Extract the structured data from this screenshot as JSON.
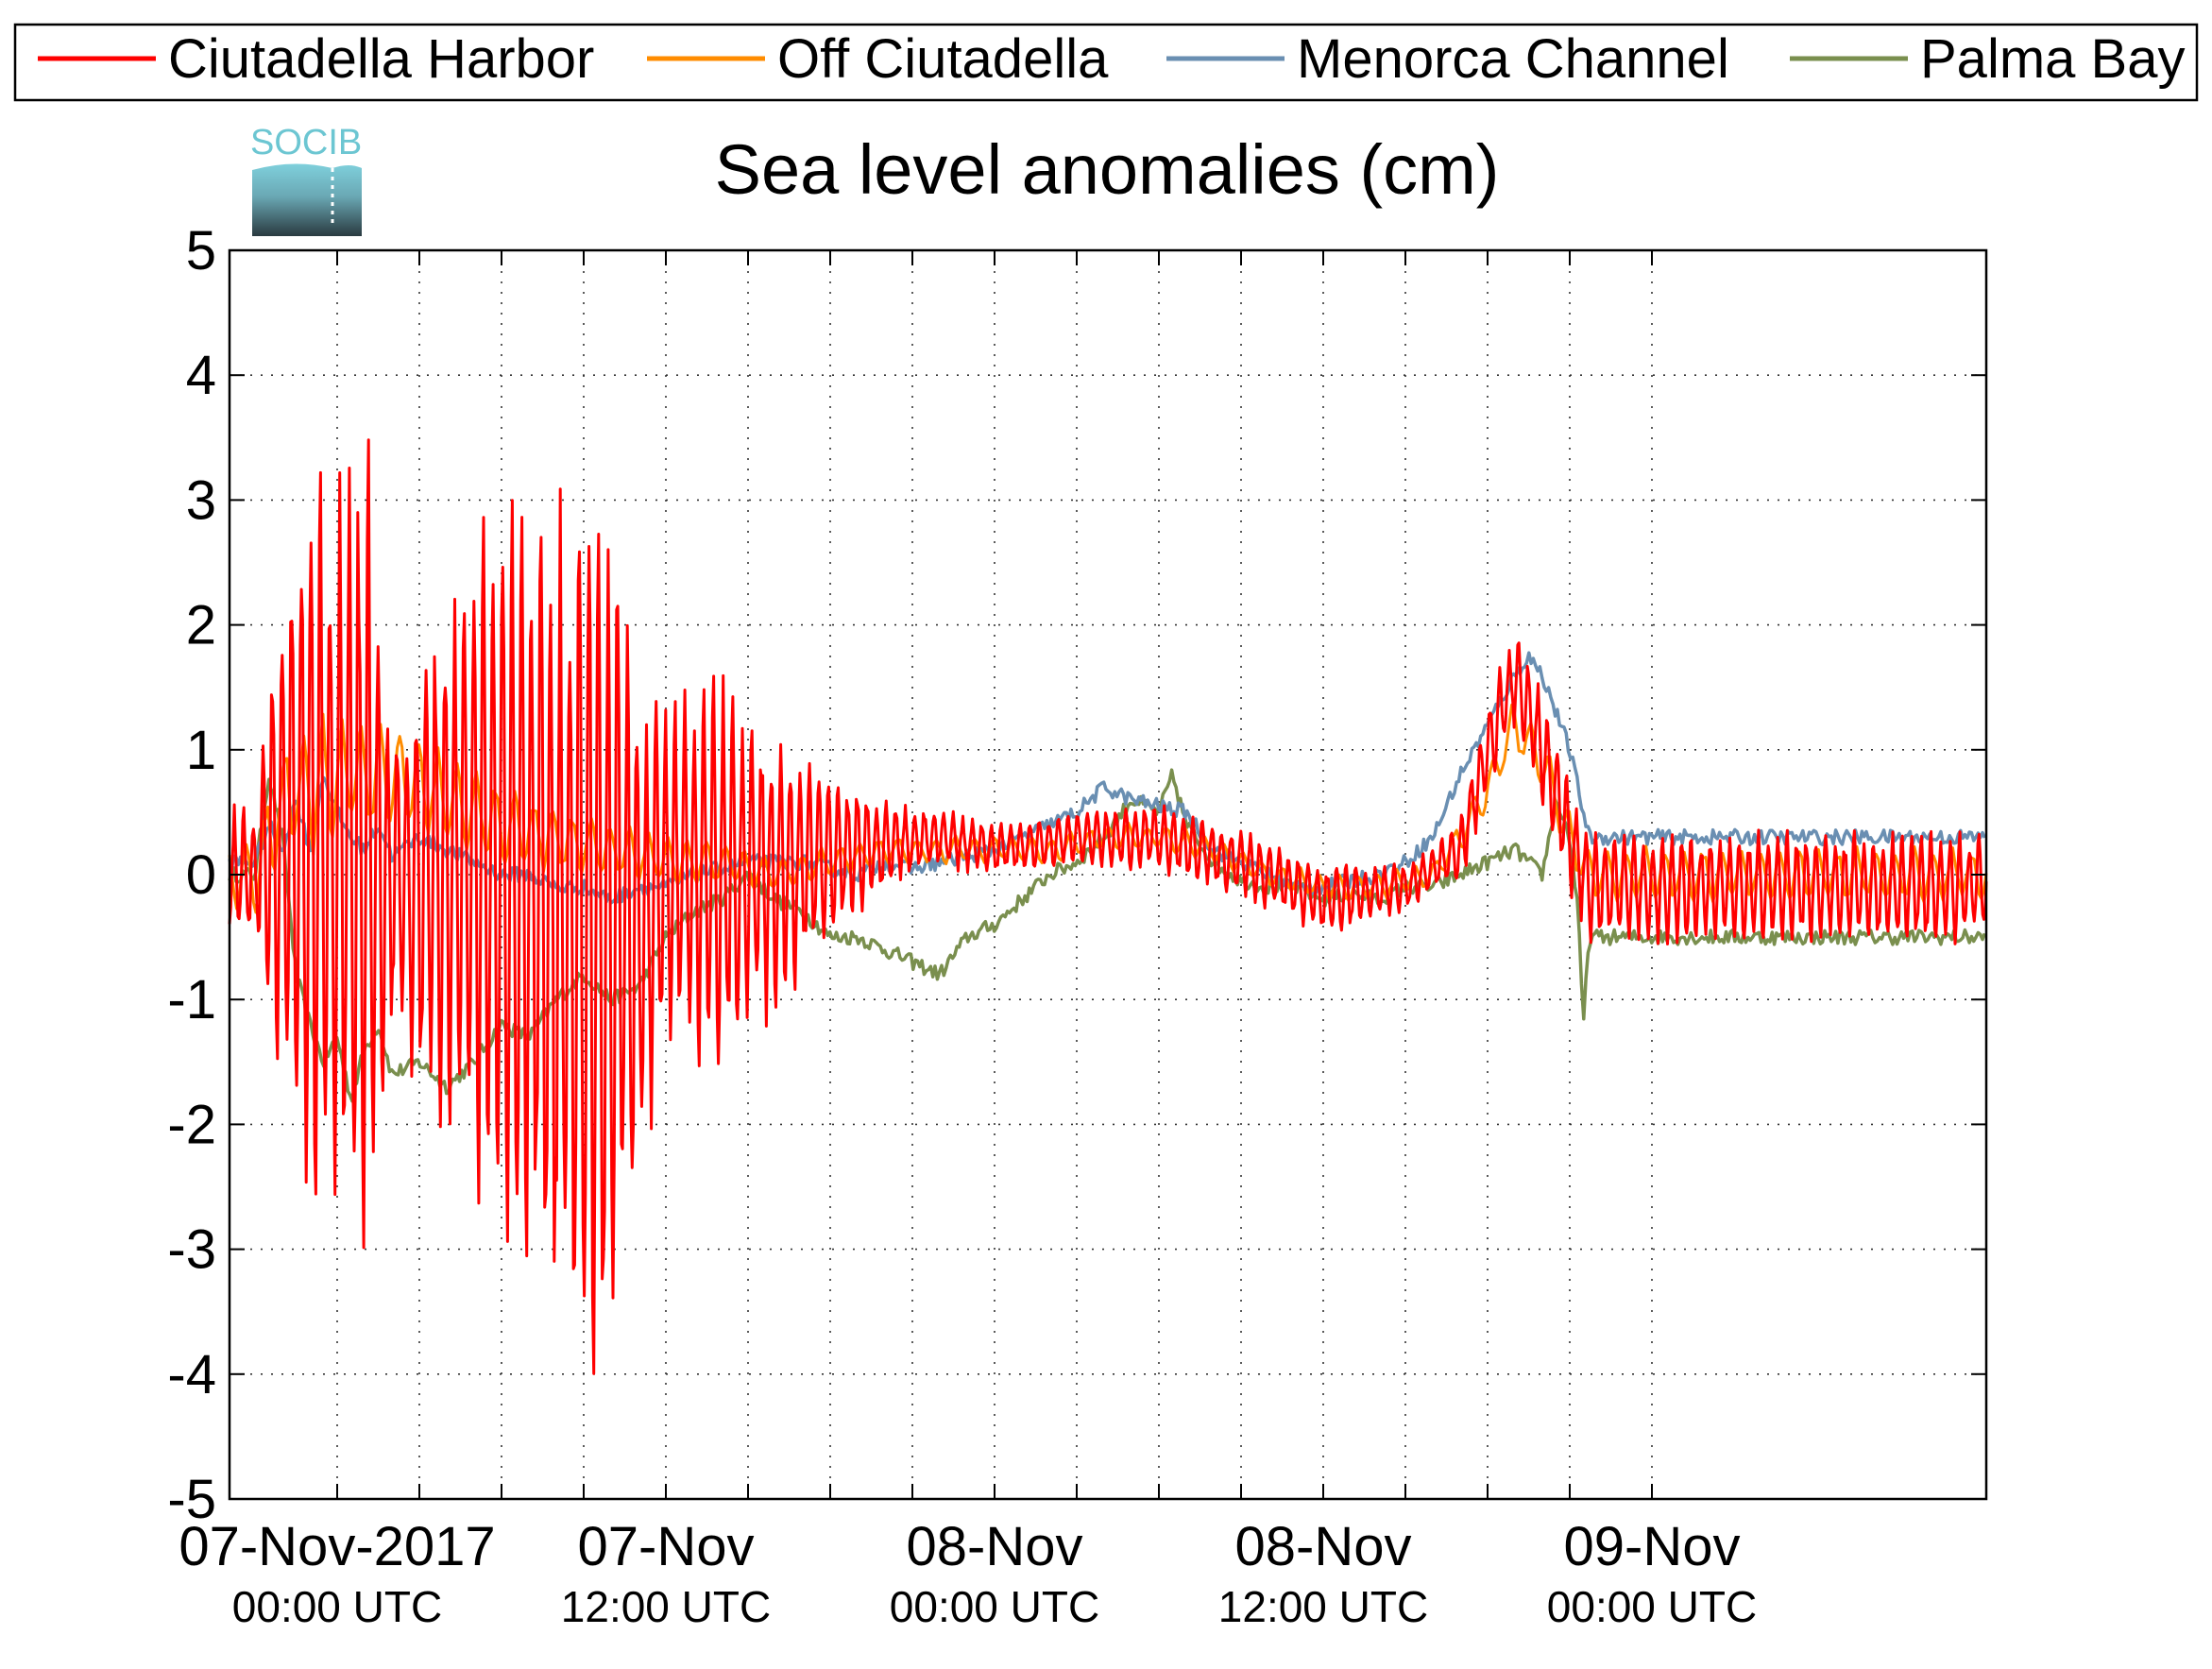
{
  "logo_text": "SOCIB",
  "chart_data": {
    "type": "line",
    "title": "Sea level anomalies (cm)",
    "xlabel": "",
    "ylabel": "",
    "ylim": [
      -5,
      5
    ],
    "yticks": [
      5,
      4,
      3,
      2,
      1,
      0,
      -1,
      -2,
      -3,
      -4,
      -5
    ],
    "ytick_labels": [
      "5",
      "4",
      "3",
      "2",
      "1",
      "0",
      "-1",
      "-2",
      "-3",
      "-4",
      "-5"
    ],
    "xlim_hours": [
      0,
      48
    ],
    "x_unit": "hours after 07-Nov-2017 00:00 UTC",
    "x_major_ticks": [
      {
        "hour": 0,
        "line1": "07-Nov-2017",
        "line2": "00:00 UTC"
      },
      {
        "hour": 12,
        "line1": "07-Nov",
        "line2": "12:00 UTC"
      },
      {
        "hour": 24,
        "line1": "08-Nov",
        "line2": "00:00 UTC"
      },
      {
        "hour": 36,
        "line1": "08-Nov",
        "line2": "12:00 UTC"
      },
      {
        "hour": 48,
        "line1": "09-Nov",
        "line2": "00:00 UTC"
      }
    ],
    "x_minor_tick_hours": [
      3,
      6,
      9,
      15,
      18,
      21,
      27,
      30,
      33,
      39,
      42,
      45
    ],
    "grid": true,
    "legend_position": "top",
    "series": [
      {
        "name": "Ciutadella Harbor",
        "color": "#ff0000",
        "oscillating": true,
        "oscillation_period_hours": 0.35,
        "center": [
          [
            -3,
            0
          ],
          [
            -2,
            0.3
          ],
          [
            0,
            0.3
          ],
          [
            2,
            0
          ],
          [
            5,
            0.2
          ],
          [
            9,
            -0.5
          ],
          [
            11,
            -0.5
          ],
          [
            12,
            0
          ],
          [
            16,
            0
          ],
          [
            19,
            0.2
          ],
          [
            22,
            0.3
          ],
          [
            24,
            0.2
          ],
          [
            27,
            0.3
          ],
          [
            30,
            0.3
          ],
          [
            33,
            0.1
          ],
          [
            36,
            -0.2
          ],
          [
            39,
            -0.1
          ],
          [
            41,
            0.2
          ],
          [
            42,
            1
          ],
          [
            43,
            1.6
          ],
          [
            44,
            1
          ],
          [
            45,
            0.3
          ],
          [
            45.7,
            -0.1
          ]
        ],
        "amplitude": [
          [
            -3,
            0.5
          ],
          [
            -2,
            2
          ],
          [
            -1,
            2.8
          ],
          [
            0,
            2.5
          ],
          [
            1,
            3.3
          ],
          [
            2,
            1.2
          ],
          [
            3,
            1.6
          ],
          [
            5,
            2.5
          ],
          [
            7,
            2.8
          ],
          [
            9,
            3.5
          ],
          [
            10,
            3.4
          ],
          [
            11,
            2
          ],
          [
            12,
            1.2
          ],
          [
            14,
            1.5
          ],
          [
            16,
            1
          ],
          [
            18,
            0.6
          ],
          [
            21,
            0.25
          ],
          [
            24,
            0.18
          ],
          [
            27,
            0.2
          ],
          [
            30,
            0.25
          ],
          [
            33,
            0.25
          ],
          [
            35,
            0.25
          ],
          [
            37,
            0.25
          ],
          [
            38,
            0.2
          ],
          [
            40,
            0.15
          ],
          [
            42,
            0.35
          ],
          [
            44,
            0.4
          ],
          [
            45.7,
            0.4
          ]
        ]
      },
      {
        "name": "Off Ciutadella",
        "color": "#ff8c00",
        "oscillating": true,
        "oscillation_period_hours": 0.7,
        "center": [
          [
            -3,
            0
          ],
          [
            -2,
            0.6
          ],
          [
            0,
            0.8
          ],
          [
            2,
            0.8
          ],
          [
            4,
            0.6
          ],
          [
            6,
            0.4
          ],
          [
            8,
            0.3
          ],
          [
            10,
            0.2
          ],
          [
            12,
            0.1
          ],
          [
            14,
            0.1
          ],
          [
            16,
            0
          ],
          [
            18,
            0.1
          ],
          [
            20,
            0.2
          ],
          [
            22,
            0.2
          ],
          [
            24,
            0.2
          ],
          [
            26,
            0.2
          ],
          [
            28,
            0.3
          ],
          [
            30,
            0.3
          ],
          [
            32,
            0.2
          ],
          [
            34,
            0
          ],
          [
            36,
            -0.1
          ],
          [
            38,
            -0.1
          ],
          [
            40,
            0
          ],
          [
            41,
            0.3
          ],
          [
            42,
            0.7
          ],
          [
            43,
            1.2
          ],
          [
            44,
            0.9
          ],
          [
            45,
            0.3
          ],
          [
            45.7,
            0
          ]
        ],
        "amplitude": [
          [
            -3,
            0.3
          ],
          [
            -1,
            0.5
          ],
          [
            2,
            0.4
          ],
          [
            6,
            0.3
          ],
          [
            10,
            0.2
          ],
          [
            14,
            0.15
          ],
          [
            20,
            0.1
          ],
          [
            30,
            0.1
          ],
          [
            40,
            0.1
          ],
          [
            43,
            0.2
          ],
          [
            45.7,
            0.2
          ]
        ]
      },
      {
        "name": "Menorca Channel",
        "color": "#6a8fb2",
        "oscillating": false,
        "points": [
          [
            -3,
            0.1
          ],
          [
            -2.5,
            0.4
          ],
          [
            -2,
            0.2
          ],
          [
            -1.5,
            0.6
          ],
          [
            -1,
            0.2
          ],
          [
            -0.5,
            0.8
          ],
          [
            0,
            0.5
          ],
          [
            0.5,
            0.3
          ],
          [
            1,
            0.2
          ],
          [
            1.5,
            0.4
          ],
          [
            2,
            0.15
          ],
          [
            3,
            0.3
          ],
          [
            4,
            0.2
          ],
          [
            5,
            0.1
          ],
          [
            6,
            0
          ],
          [
            7,
            0
          ],
          [
            8,
            -0.1
          ],
          [
            9,
            -0.1
          ],
          [
            10,
            -0.2
          ],
          [
            11,
            -0.1
          ],
          [
            12,
            -0.1
          ],
          [
            13,
            0
          ],
          [
            14,
            0.05
          ],
          [
            15,
            0.1
          ],
          [
            16,
            0.1
          ],
          [
            17,
            0.1
          ],
          [
            18,
            0.05
          ],
          [
            19,
            0
          ],
          [
            20,
            0.1
          ],
          [
            21,
            0.05
          ],
          [
            22,
            0.1
          ],
          [
            23,
            0.15
          ],
          [
            24,
            0.2
          ],
          [
            25,
            0.3
          ],
          [
            26,
            0.4
          ],
          [
            27,
            0.5
          ],
          [
            28,
            0.7
          ],
          [
            29,
            0.6
          ],
          [
            30,
            0.55
          ],
          [
            31,
            0.5
          ],
          [
            32,
            0.2
          ],
          [
            33,
            0.1
          ],
          [
            34,
            0
          ],
          [
            35,
            -0.1
          ],
          [
            36,
            -0.1
          ],
          [
            37,
            -0.05
          ],
          [
            38,
            0
          ],
          [
            39,
            0.1
          ],
          [
            40,
            0.3
          ],
          [
            41,
            0.8
          ],
          [
            42,
            1.2
          ],
          [
            43,
            1.6
          ],
          [
            43.5,
            1.75
          ],
          [
            44,
            1.6
          ],
          [
            44.5,
            1.3
          ],
          [
            45,
            1.0
          ],
          [
            45.5,
            0.5
          ],
          [
            45.7,
            0.3
          ]
        ]
      },
      {
        "name": "Palma Bay",
        "color": "#7a8f4e",
        "oscillating": false,
        "points": [
          [
            -3,
            0
          ],
          [
            -2.5,
            0.8
          ],
          [
            -2,
            0.3
          ],
          [
            -1.5,
            -0.8
          ],
          [
            -1,
            -1.2
          ],
          [
            -0.5,
            -1.5
          ],
          [
            0,
            -1.3
          ],
          [
            0.5,
            -1.8
          ],
          [
            1,
            -1.4
          ],
          [
            1.5,
            -1.2
          ],
          [
            2,
            -1.6
          ],
          [
            3,
            -1.5
          ],
          [
            4,
            -1.7
          ],
          [
            5,
            -1.5
          ],
          [
            6,
            -1.2
          ],
          [
            7,
            -1.3
          ],
          [
            8,
            -1
          ],
          [
            9,
            -0.8
          ],
          [
            10,
            -1
          ],
          [
            11,
            -0.9
          ],
          [
            12,
            -0.5
          ],
          [
            13,
            -0.3
          ],
          [
            14,
            -0.2
          ],
          [
            15,
            0
          ],
          [
            16,
            -0.2
          ],
          [
            17,
            -0.3
          ],
          [
            18,
            -0.5
          ],
          [
            19,
            -0.5
          ],
          [
            20,
            -0.6
          ],
          [
            21,
            -0.7
          ],
          [
            22,
            -0.8
          ],
          [
            23,
            -0.5
          ],
          [
            24,
            -0.4
          ],
          [
            25,
            -0.2
          ],
          [
            26,
            0
          ],
          [
            27,
            0.1
          ],
          [
            28,
            0.3
          ],
          [
            29,
            0.6
          ],
          [
            30,
            0.5
          ],
          [
            30.5,
            0.8
          ],
          [
            31,
            0.4
          ],
          [
            32,
            0.1
          ],
          [
            33,
            -0.05
          ],
          [
            34,
            -0.1
          ],
          [
            35,
            -0.1
          ],
          [
            36,
            -0.2
          ],
          [
            37,
            -0.15
          ],
          [
            38,
            -0.2
          ],
          [
            39,
            -0.1
          ],
          [
            40,
            -0.1
          ],
          [
            41,
            0
          ],
          [
            42,
            0.1
          ],
          [
            43,
            0.2
          ],
          [
            44,
            0
          ],
          [
            44.5,
            0.6
          ],
          [
            45,
            0.3
          ],
          [
            45.3,
            -0.3
          ],
          [
            45.5,
            -1.2
          ],
          [
            45.7,
            -0.5
          ]
        ]
      }
    ]
  }
}
